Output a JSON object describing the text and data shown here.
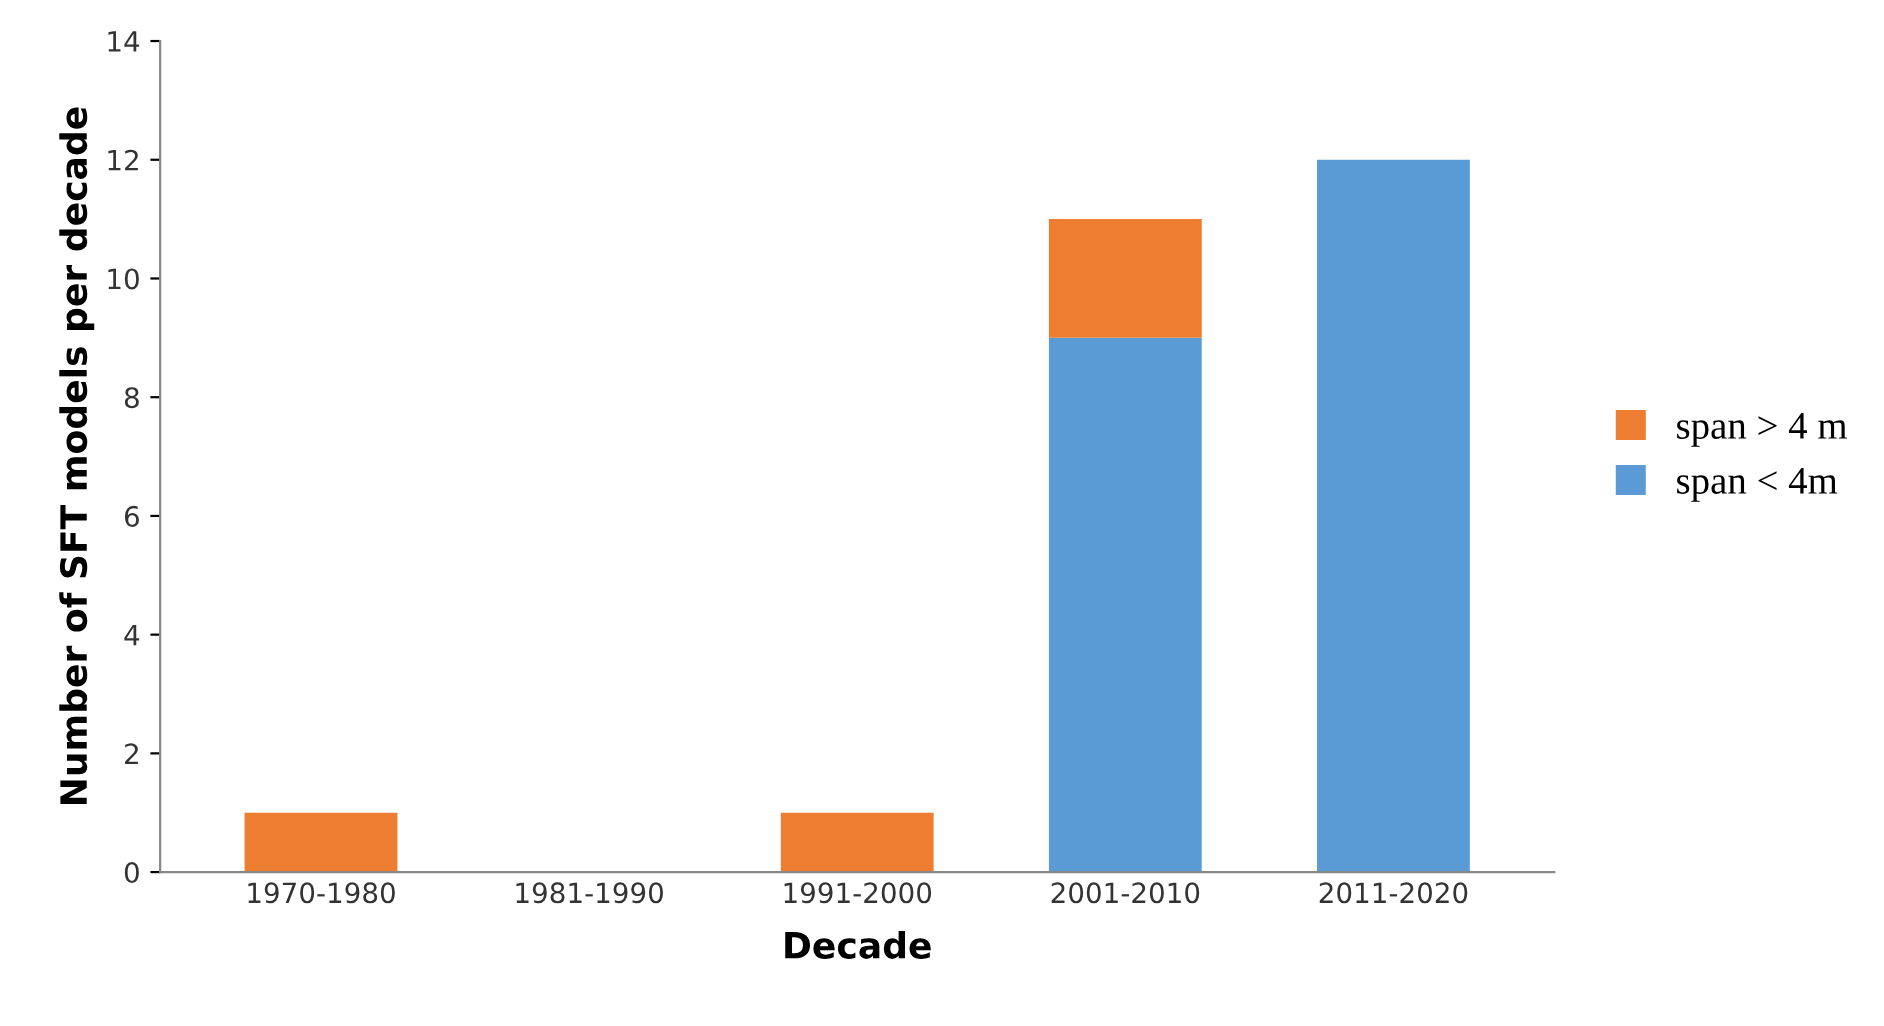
{
  "chart_data": {
    "type": "bar",
    "stacked": true,
    "xlabel": "Decade",
    "ylabel": "Number of SFT models per decade",
    "categories": [
      "1970-1980",
      "1981-1990",
      "1991-2000",
      "2001-2010",
      "2011-2020"
    ],
    "series": [
      {
        "name": "span < 4m",
        "color": "#5b9bd5",
        "values": [
          0,
          0,
          0,
          9,
          12
        ]
      },
      {
        "name": "span > 4 m",
        "color": "#ed7d31",
        "values": [
          1,
          0,
          1,
          2,
          0
        ]
      }
    ],
    "ylim": [
      0,
      14
    ],
    "yticks": [
      0,
      2,
      4,
      6,
      8,
      10,
      12,
      14
    ],
    "grid": false,
    "legend": "right"
  }
}
